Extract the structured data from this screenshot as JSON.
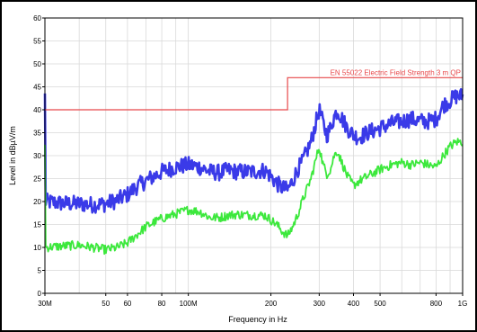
{
  "chart_data": {
    "type": "line",
    "xlabel": "Frequency in Hz",
    "ylabel": "Level in dBµV/m",
    "x_scale": "log",
    "xlim": [
      30,
      1000
    ],
    "ylim": [
      0,
      60
    ],
    "grid": true,
    "y_ticks": [
      {
        "value": 0,
        "label": "0"
      },
      {
        "value": 5,
        "label": "5"
      },
      {
        "value": 10,
        "label": "10"
      },
      {
        "value": 15,
        "label": "15"
      },
      {
        "value": 20,
        "label": "20"
      },
      {
        "value": 25,
        "label": "25"
      },
      {
        "value": 30,
        "label": "30"
      },
      {
        "value": 35,
        "label": "35"
      },
      {
        "value": 40,
        "label": "40"
      },
      {
        "value": 45,
        "label": "45"
      },
      {
        "value": 50,
        "label": "50"
      },
      {
        "value": 55,
        "label": "55"
      },
      {
        "value": 60,
        "label": "60"
      }
    ],
    "x_ticks": [
      {
        "value": 30,
        "label": "30M"
      },
      {
        "value": 50,
        "label": "50"
      },
      {
        "value": 60,
        "label": "60"
      },
      {
        "value": 80,
        "label": "80"
      },
      {
        "value": 100,
        "label": "100M"
      },
      {
        "value": 200,
        "label": "200"
      },
      {
        "value": 300,
        "label": "300"
      },
      {
        "value": 400,
        "label": "400"
      },
      {
        "value": 500,
        "label": "500"
      },
      {
        "value": 800,
        "label": "800"
      },
      {
        "value": 1000,
        "label": "1G"
      }
    ],
    "x_minor_grid": [
      40,
      70,
      90,
      600,
      700,
      900
    ],
    "limit_line": {
      "name": "EN 55022 Electric Field Strength 3 m QP",
      "color": "#e8484a",
      "points": [
        [
          30,
          40
        ],
        [
          230,
          40
        ],
        [
          230,
          47
        ],
        [
          1000,
          47
        ]
      ]
    },
    "series": [
      {
        "color": "#3a3ae8",
        "band_width": 1.8,
        "x": [
          30,
          35,
          40,
          45,
          50,
          55,
          60,
          65,
          70,
          75,
          80,
          90,
          100,
          110,
          120,
          130,
          140,
          150,
          170,
          190,
          200,
          210,
          220,
          230,
          240,
          250,
          260,
          280,
          300,
          310,
          320,
          330,
          340,
          350,
          360,
          380,
          400,
          420,
          450,
          500,
          550,
          600,
          650,
          700,
          750,
          800,
          850,
          900,
          950,
          1000
        ],
        "y": [
          20,
          19.6,
          19.5,
          19.3,
          19.5,
          20.3,
          21.5,
          23.3,
          24.5,
          25.5,
          26.5,
          27.5,
          28,
          27.5,
          26.5,
          26.3,
          26.8,
          26.5,
          26.5,
          26.8,
          25.5,
          24,
          23,
          22.5,
          24.5,
          27,
          28.5,
          33,
          40,
          37,
          34.5,
          36,
          38.5,
          40,
          38.5,
          36,
          34.5,
          34,
          35,
          36,
          37,
          37.5,
          38,
          37.5,
          37.5,
          38,
          41,
          42,
          43,
          43
        ]
      },
      {
        "color": "#3ce83c",
        "band_width": 1.0,
        "x": [
          30,
          35,
          40,
          45,
          50,
          55,
          60,
          65,
          70,
          75,
          80,
          90,
          100,
          110,
          120,
          130,
          140,
          150,
          170,
          190,
          200,
          210,
          220,
          230,
          240,
          250,
          260,
          280,
          300,
          310,
          320,
          330,
          340,
          350,
          360,
          380,
          400,
          420,
          450,
          500,
          550,
          600,
          650,
          700,
          750,
          800,
          850,
          900,
          950,
          1000
        ],
        "y": [
          10,
          10.3,
          10.5,
          10,
          9.5,
          10,
          11,
          12.8,
          14.5,
          15.5,
          16.3,
          17.3,
          18.2,
          17.8,
          16.5,
          16.5,
          17,
          17.2,
          17,
          17,
          16,
          15,
          13.5,
          12.5,
          14.5,
          17,
          20,
          25,
          32,
          28,
          26,
          27,
          30,
          31,
          29,
          25.5,
          23.5,
          24.5,
          25.5,
          27,
          28,
          28.5,
          28,
          28.5,
          28,
          27.5,
          30,
          32,
          33,
          33
        ]
      }
    ]
  }
}
